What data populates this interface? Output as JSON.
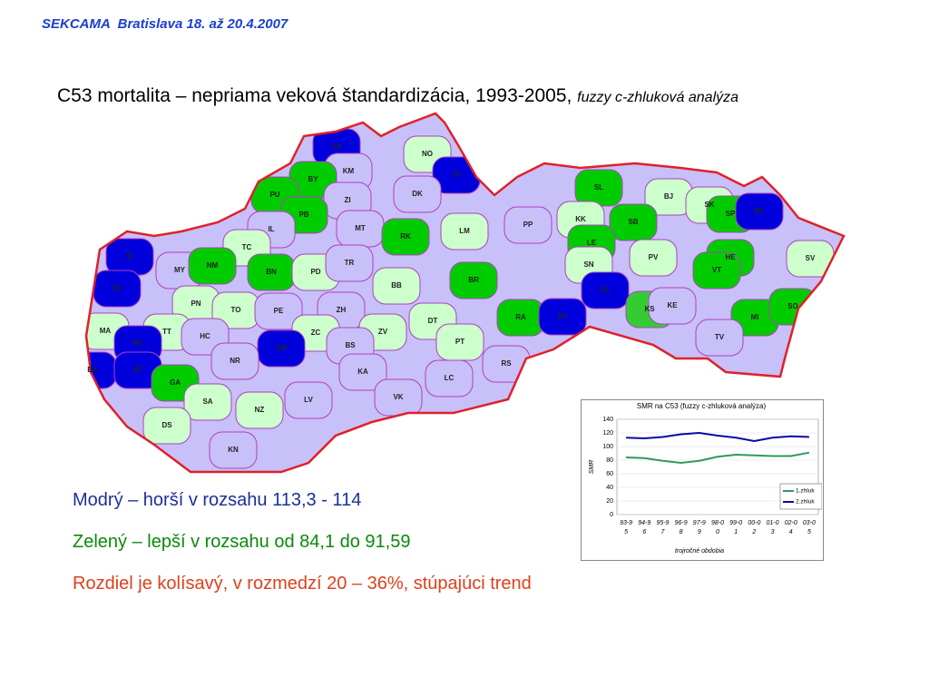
{
  "header": "SEKCAMA  Bratislava 18. až 20.4.2007",
  "title": {
    "main": "C53 mortalita – nepriama veková štandardizácia, 1993-2005,",
    "method": "fuzzy c-zhluková analýza"
  },
  "map": {
    "districts": [
      {
        "label": "CA",
        "color": "#0000dd"
      },
      {
        "label": "NO",
        "color": "#ccffcc"
      },
      {
        "label": "TS",
        "color": "#0000dd"
      },
      {
        "label": "KM",
        "color": "#c8c0f8"
      },
      {
        "label": "BY",
        "color": "#00cc00"
      },
      {
        "label": "PU",
        "color": "#00cc00"
      },
      {
        "label": "ZI",
        "color": "#c8c0f8"
      },
      {
        "label": "DK",
        "color": "#c8c0f8"
      },
      {
        "label": "PB",
        "color": "#00cc00"
      },
      {
        "label": "IL",
        "color": "#c8c0f8"
      },
      {
        "label": "MT",
        "color": "#c8c0f8"
      },
      {
        "label": "RK",
        "color": "#00cc00"
      },
      {
        "label": "LM",
        "color": "#ccffcc"
      },
      {
        "label": "PP",
        "color": "#c8c0f8"
      },
      {
        "label": "SL",
        "color": "#00cc00"
      },
      {
        "label": "BJ",
        "color": "#ccffcc"
      },
      {
        "label": "SK",
        "color": "#ccffcc"
      },
      {
        "label": "KK",
        "color": "#ccffcc"
      },
      {
        "label": "SB",
        "color": "#00cc00"
      },
      {
        "label": "SP",
        "color": "#00cc00"
      },
      {
        "label": "ML",
        "color": "#0000dd"
      },
      {
        "label": "LE",
        "color": "#00cc00"
      },
      {
        "label": "TC",
        "color": "#ccffcc"
      },
      {
        "label": "SI",
        "color": "#0000dd"
      },
      {
        "label": "MY",
        "color": "#c8c0f8"
      },
      {
        "label": "NM",
        "color": "#00cc00"
      },
      {
        "label": "BN",
        "color": "#00cc00"
      },
      {
        "label": "PD",
        "color": "#ccffcc"
      },
      {
        "label": "TR",
        "color": "#c8c0f8"
      },
      {
        "label": "BB",
        "color": "#ccffcc"
      },
      {
        "label": "BR",
        "color": "#00cc00"
      },
      {
        "label": "SN",
        "color": "#ccffcc"
      },
      {
        "label": "PV",
        "color": "#ccffcc"
      },
      {
        "label": "HE",
        "color": "#00cc00"
      },
      {
        "label": "SV",
        "color": "#ccffcc"
      },
      {
        "label": "VT",
        "color": "#00cc00"
      },
      {
        "label": "SE",
        "color": "#0000dd"
      },
      {
        "label": "GL",
        "color": "#0000dd"
      },
      {
        "label": "PN",
        "color": "#ccffcc"
      },
      {
        "label": "TO",
        "color": "#ccffcc"
      },
      {
        "label": "PE",
        "color": "#c8c0f8"
      },
      {
        "label": "ZH",
        "color": "#c8c0f8"
      },
      {
        "label": "DT",
        "color": "#ccffcc"
      },
      {
        "label": "RA",
        "color": "#00cc00"
      },
      {
        "label": "RV",
        "color": "#0000dd"
      },
      {
        "label": "KS",
        "color": "#33cc33"
      },
      {
        "label": "KE",
        "color": "#c8c0f8"
      },
      {
        "label": "MI",
        "color": "#00cc00"
      },
      {
        "label": "SO",
        "color": "#00cc00"
      },
      {
        "label": "MA",
        "color": "#ccffcc"
      },
      {
        "label": "TT",
        "color": "#ccffcc"
      },
      {
        "label": "HC",
        "color": "#c8c0f8"
      },
      {
        "label": "ZC",
        "color": "#ccffcc"
      },
      {
        "label": "ZV",
        "color": "#ccffcc"
      },
      {
        "label": "PT",
        "color": "#ccffcc"
      },
      {
        "label": "TV",
        "color": "#c8c0f8"
      },
      {
        "label": "PK",
        "color": "#0000dd"
      },
      {
        "label": "ZM",
        "color": "#0000dd"
      },
      {
        "label": "BS",
        "color": "#c8c0f8"
      },
      {
        "label": "NR",
        "color": "#c8c0f8"
      },
      {
        "label": "RS",
        "color": "#c8c0f8"
      },
      {
        "label": "KA",
        "color": "#c8c0f8"
      },
      {
        "label": "BA",
        "color": "#0000dd"
      },
      {
        "label": "SC",
        "color": "#0000dd"
      },
      {
        "label": "LC",
        "color": "#c8c0f8"
      },
      {
        "label": "GA",
        "color": "#00cc00"
      },
      {
        "label": "SA",
        "color": "#ccffcc"
      },
      {
        "label": "LV",
        "color": "#c8c0f8"
      },
      {
        "label": "VK",
        "color": "#c8c0f8"
      },
      {
        "label": "NZ",
        "color": "#ccffcc"
      },
      {
        "label": "DS",
        "color": "#ccffcc"
      },
      {
        "label": "KN",
        "color": "#c8c0f8"
      }
    ]
  },
  "chart_data": {
    "type": "line",
    "title": "SMR na C53 (fuzzy c-zhluková analýza)",
    "y_label": "SMR",
    "x_label": "trojročné obdobia",
    "categories": [
      "93-95",
      "94-96",
      "95-97",
      "96-98",
      "97-99",
      "98-00",
      "99-01",
      "00-02",
      "01-03",
      "02-04",
      "03-05"
    ],
    "series": [
      {
        "name": "1.zhluk",
        "color": "#2e9a5e",
        "values": [
          84,
          83,
          79,
          76,
          79,
          85,
          88,
          87,
          86,
          86,
          91
        ]
      },
      {
        "name": "2.zhluk",
        "color": "#0a0aa0",
        "values": [
          113,
          112,
          114,
          118,
          120,
          116,
          113,
          108,
          113,
          115,
          114
        ]
      }
    ],
    "ylim": [
      0,
      140
    ],
    "yticks": [
      0,
      20,
      40,
      60,
      80,
      100,
      120,
      140
    ],
    "grid": true,
    "legend": "right"
  },
  "notes": [
    {
      "text": "Modrý – horší v rozsahu 113,3 - 114"
    },
    {
      "text": "Zelený – lepší v rozsahu od 84,1 do 91,59"
    },
    {
      "text": "Rozdiel je kolísavý, v rozmedzí 20 – 36%, stúpajúci trend"
    }
  ]
}
